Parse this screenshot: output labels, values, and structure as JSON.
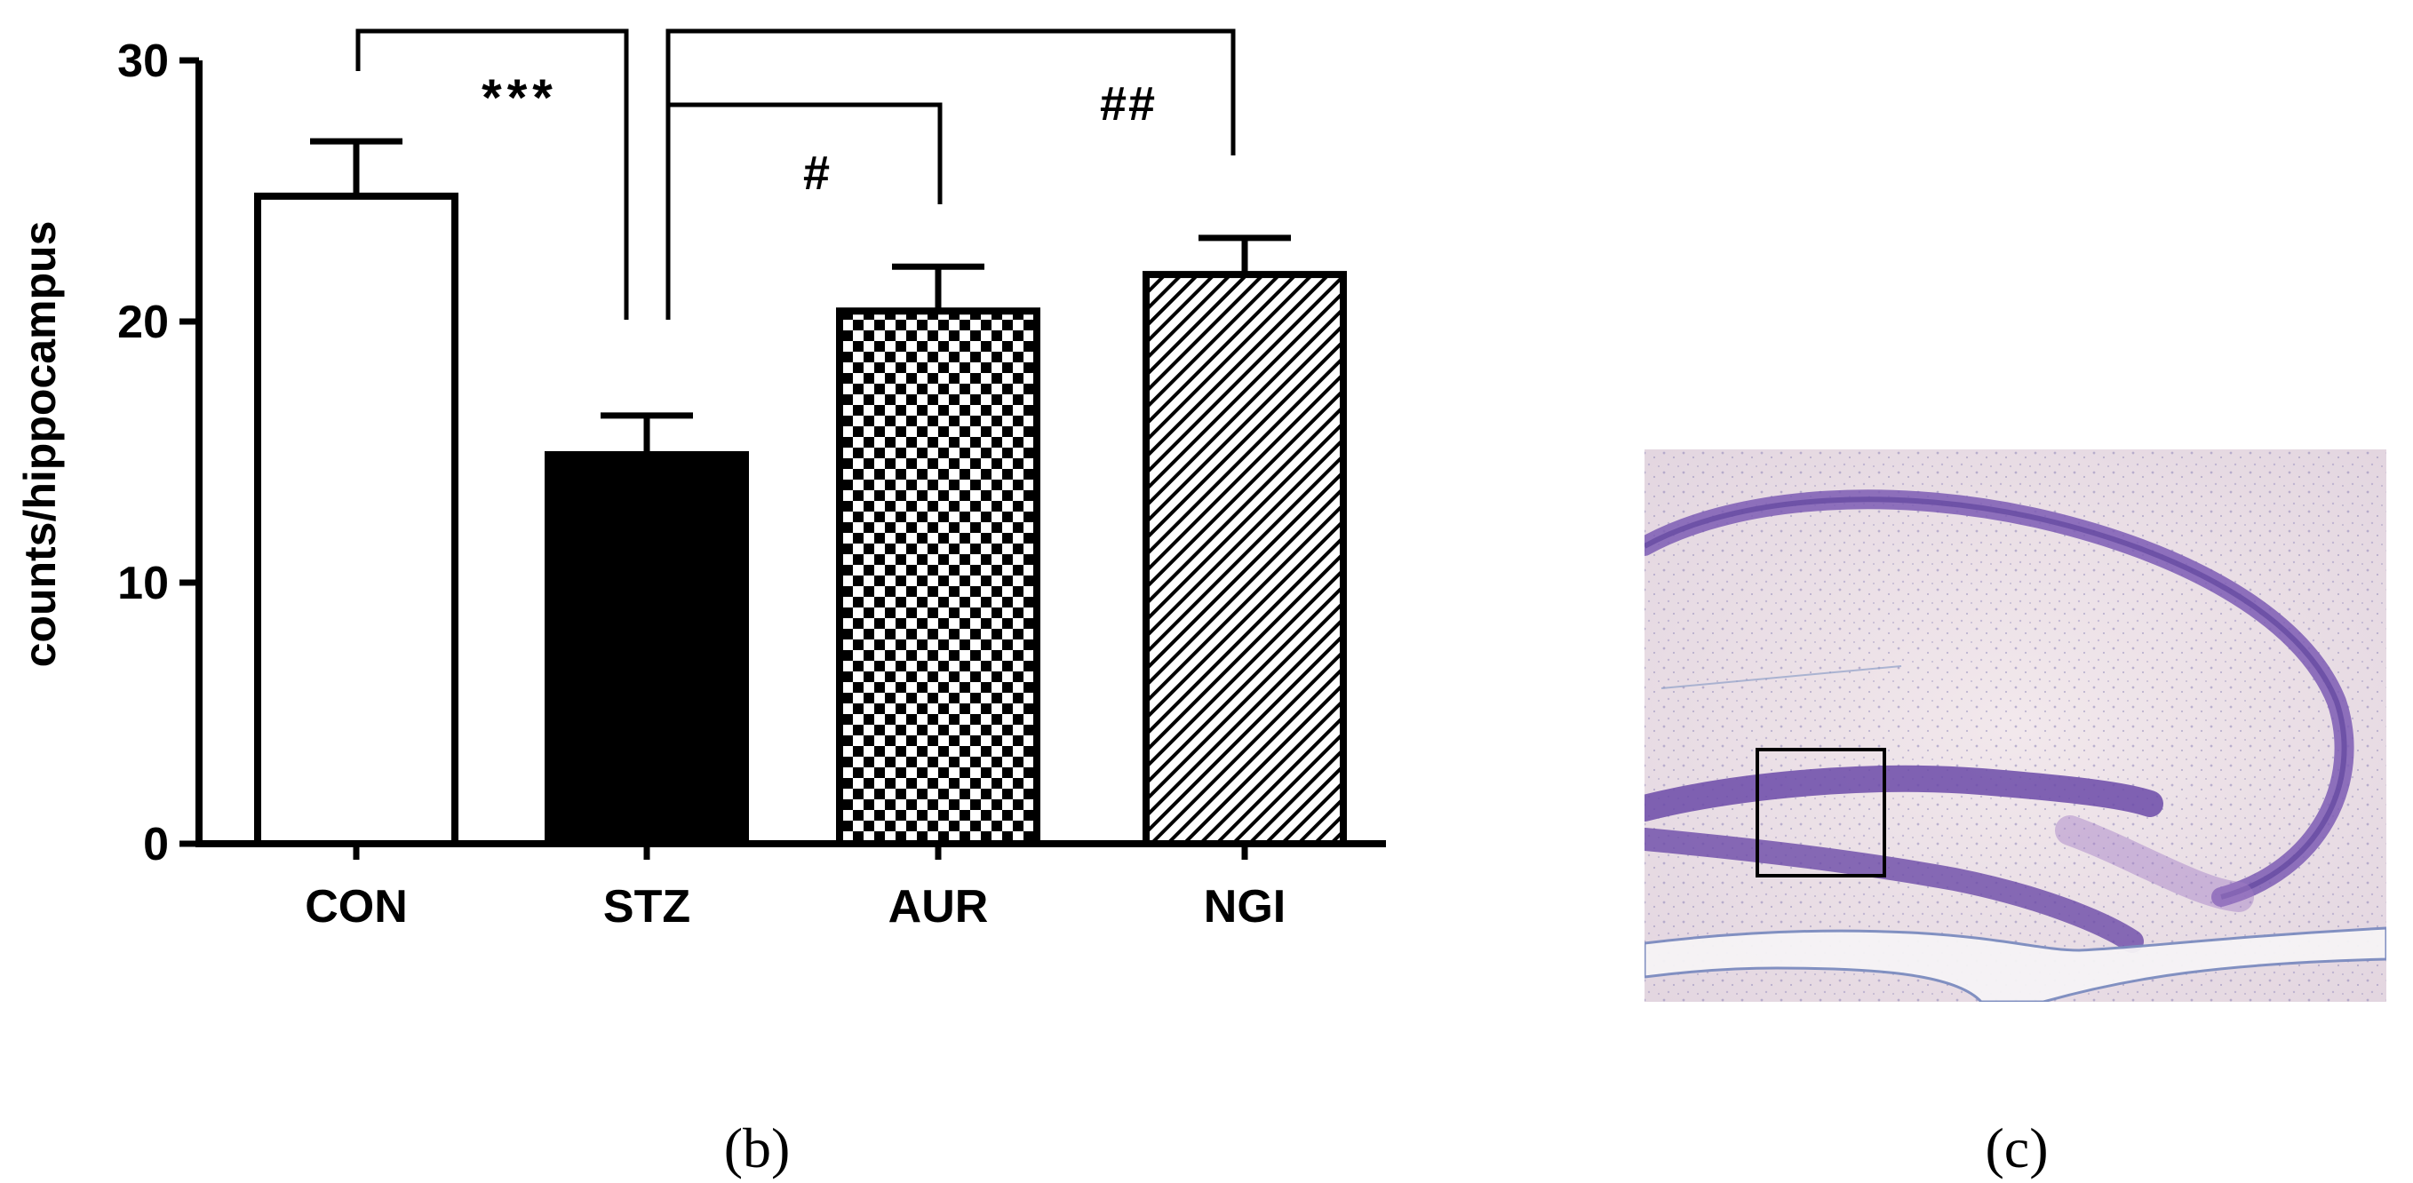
{
  "chart_data": {
    "type": "bar",
    "ylabel": "counts/hippocampus",
    "categories": [
      "CON",
      "STZ",
      "AUR",
      "NGI"
    ],
    "values": [
      24.8,
      14.9,
      20.4,
      21.8
    ],
    "errors": [
      2.1,
      1.5,
      1.7,
      1.4
    ],
    "ylim": [
      0,
      30
    ],
    "yticks": [
      0,
      10,
      20,
      30
    ],
    "fills": [
      "open",
      "solid",
      "checkerboard",
      "diagonal-hatch"
    ],
    "colors": {
      "bar_stroke": "#000000",
      "open": "#ffffff",
      "solid": "#000000"
    },
    "grid": false,
    "significance": [
      {
        "from": "CON",
        "to": "STZ",
        "label": "***"
      },
      {
        "from": "STZ",
        "to": "AUR",
        "label": "#"
      },
      {
        "from": "STZ",
        "to": "NGI",
        "label": "##"
      }
    ]
  },
  "panels": {
    "b": {
      "label": "(b)"
    },
    "c": {
      "label": "(c)",
      "image": "hippocampus-nissl-micrograph"
    }
  }
}
